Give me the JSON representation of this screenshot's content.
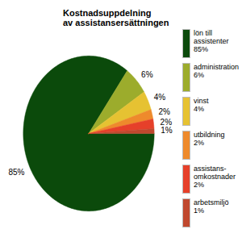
{
  "chart_data": {
    "type": "pie",
    "title": "Kostnadsuppdelning\nav assistansersättningen",
    "categories": [
      "lön till assistenter",
      "administration",
      "vinst",
      "utbildning",
      "assistans-omkostnader",
      "arbetsmiljö"
    ],
    "values": [
      85,
      6,
      4,
      2,
      2,
      1
    ],
    "value_labels": [
      "85%",
      "6%",
      "4%",
      "2%",
      "2%",
      "1%"
    ],
    "colors": [
      "#0b4a0b",
      "#9cac2c",
      "#e6c232",
      "#ee8a2c",
      "#e6402a",
      "#c0482e"
    ],
    "data_labels": true,
    "legend": "right"
  }
}
